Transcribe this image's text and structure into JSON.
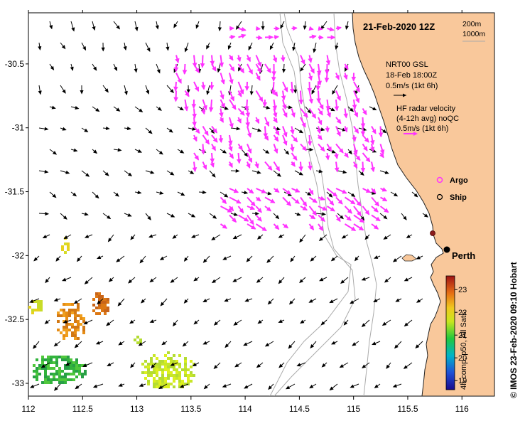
{
  "title": "21-Feb-2020 12Z",
  "depth_contours": [
    "200m",
    "1000m"
  ],
  "gsl_legend": {
    "line1": "NRT00 GSL",
    "line2": "18-Feb 18:00Z",
    "line3": "0.5m/s (1kt 6h)"
  },
  "hf_legend": {
    "line1": "HF radar velocity",
    "line2": "(4-12h avg) noQC",
    "line3": "0.5m/s (1kt 6h)"
  },
  "markers": {
    "argo": "Argo",
    "ship": "Ship"
  },
  "city": "Perth",
  "colorbar": {
    "label": "4h comp, p50, All Sats",
    "ticks": [
      "19",
      "20",
      "21",
      "22",
      "23"
    ],
    "range": [
      18.6,
      23.6
    ]
  },
  "credit": "© IMOS 23-Feb-2020 09:10 Hobart",
  "x_ticks": [
    "112",
    "112.5",
    "113",
    "113.5",
    "114",
    "114.5",
    "115",
    "115.5",
    "116"
  ],
  "y_ticks": [
    "-30.5",
    "-31",
    "-31.5",
    "-32",
    "-32.5",
    "-33"
  ],
  "axis_limits": {
    "lon": [
      112,
      116.3
    ],
    "lat": [
      -33.1,
      -30.1
    ]
  },
  "colors": {
    "land": "#f9c89b",
    "radar": "#ff33ff",
    "gsl": "#000000",
    "contour": "#aaaaaa"
  }
}
